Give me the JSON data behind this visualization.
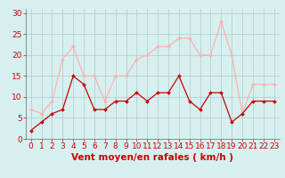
{
  "hours": [
    0,
    1,
    2,
    3,
    4,
    5,
    6,
    7,
    8,
    9,
    10,
    11,
    12,
    13,
    14,
    15,
    16,
    17,
    18,
    19,
    20,
    21,
    22,
    23
  ],
  "avg_wind": [
    2,
    4,
    6,
    7,
    15,
    13,
    7,
    7,
    9,
    9,
    11,
    9,
    11,
    11,
    15,
    9,
    7,
    11,
    11,
    4,
    6,
    9,
    9,
    9
  ],
  "gusts": [
    7,
    6,
    9,
    19,
    22,
    15,
    15,
    9,
    15,
    15,
    19,
    20,
    22,
    22,
    24,
    24,
    20,
    20,
    28,
    20,
    6,
    13,
    13,
    13
  ],
  "avg_color": "#cc0000",
  "gust_color": "#ffb0b0",
  "bg_color": "#d6f0f0",
  "grid_color": "#b0c8c8",
  "axis_label_color": "#cc0000",
  "tick_color": "#cc0000",
  "xlabel": "Vent moyen/en rafales ( km/h )",
  "ylabel_ticks": [
    0,
    5,
    10,
    15,
    20,
    25,
    30
  ],
  "ylim": [
    0,
    31
  ],
  "xlim": [
    -0.5,
    23.5
  ],
  "xlabel_fontsize": 7.5,
  "tick_fontsize": 6.5
}
